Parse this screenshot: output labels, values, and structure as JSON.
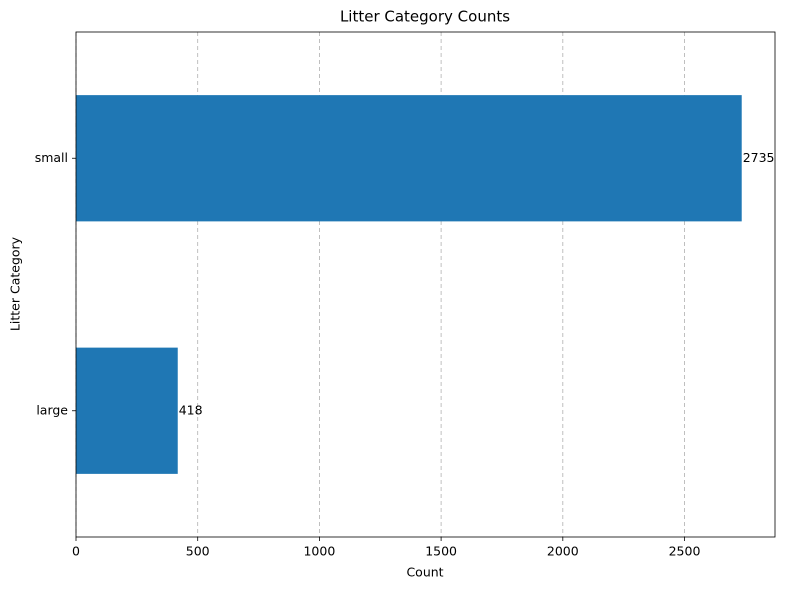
{
  "chart_data": {
    "type": "barh",
    "title": "Litter Category Counts",
    "x_label": "Count",
    "y_label": "Litter Category",
    "categories": [
      "small",
      "large"
    ],
    "values": [
      2735,
      418
    ],
    "color": "#1f77b4",
    "xlim": [
      0,
      2871.75
    ],
    "xticks": [
      0,
      500,
      1000,
      1500,
      2000,
      2500
    ],
    "grid": true
  }
}
